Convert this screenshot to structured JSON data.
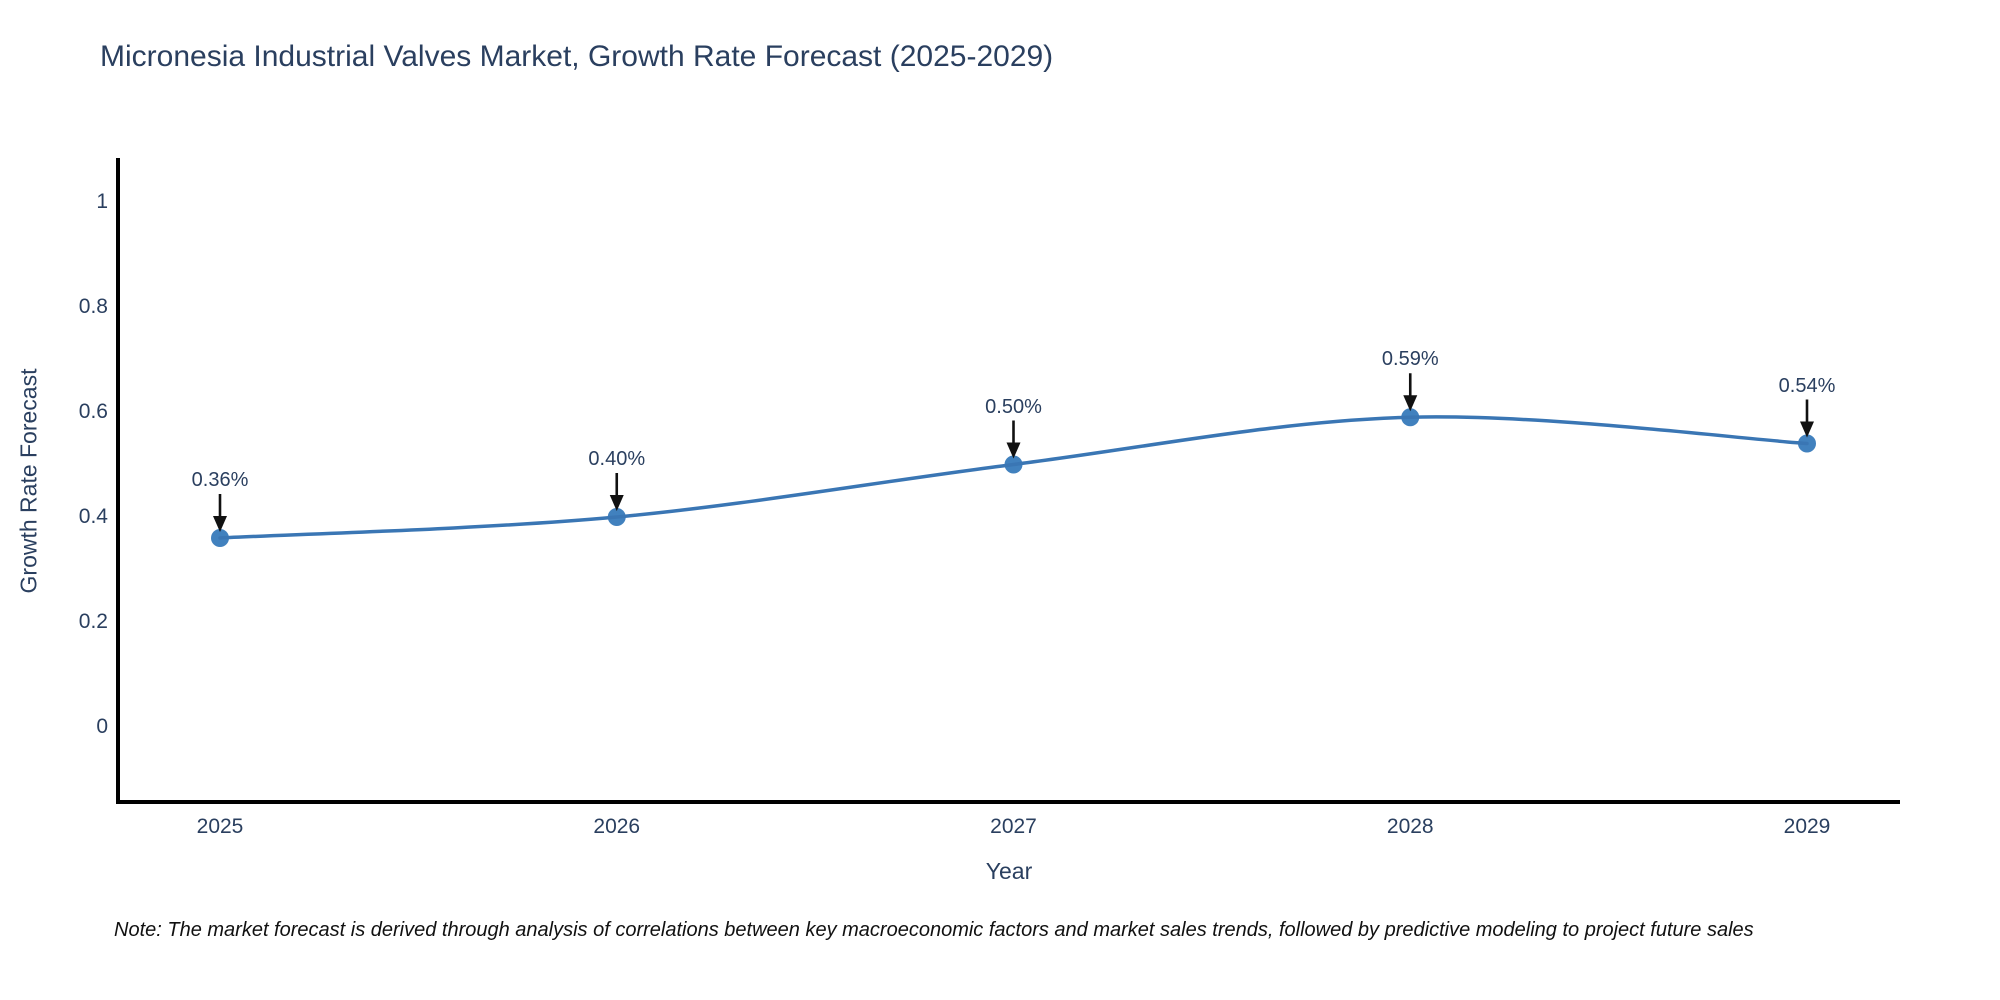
{
  "chart_data": {
    "type": "line",
    "title": "Micronesia Industrial Valves Market, Growth Rate Forecast (2025-2029)",
    "categories": [
      "2025",
      "2026",
      "2027",
      "2028",
      "2029"
    ],
    "series": [
      {
        "name": "Growth Rate Forecast",
        "values": [
          0.36,
          0.4,
          0.5,
          0.59,
          0.54
        ]
      }
    ],
    "point_labels": [
      "0.36%",
      "0.40%",
      "0.50%",
      "0.59%",
      "0.54%"
    ],
    "xlabel": "Year",
    "ylabel": "Growth Rate Forecast",
    "yticks": [
      0,
      0.2,
      0.4,
      0.6,
      0.8,
      1
    ],
    "ytick_labels": [
      "0",
      "0.2",
      "0.4",
      "0.6",
      "0.8",
      "1"
    ],
    "ylim": [
      -0.14,
      1.08
    ],
    "line_shape": "spline",
    "grid": false,
    "legend_position": "none",
    "colors": {
      "line": "#3a76b4",
      "marker": "#4181be",
      "arrow": "#111111",
      "axis": "#000000",
      "text": "#2a3f5f"
    }
  },
  "note": "Note: The market forecast is derived through analysis of correlations between key macroeconomic factors and market sales trends, followed by predictive modeling to project future sales"
}
